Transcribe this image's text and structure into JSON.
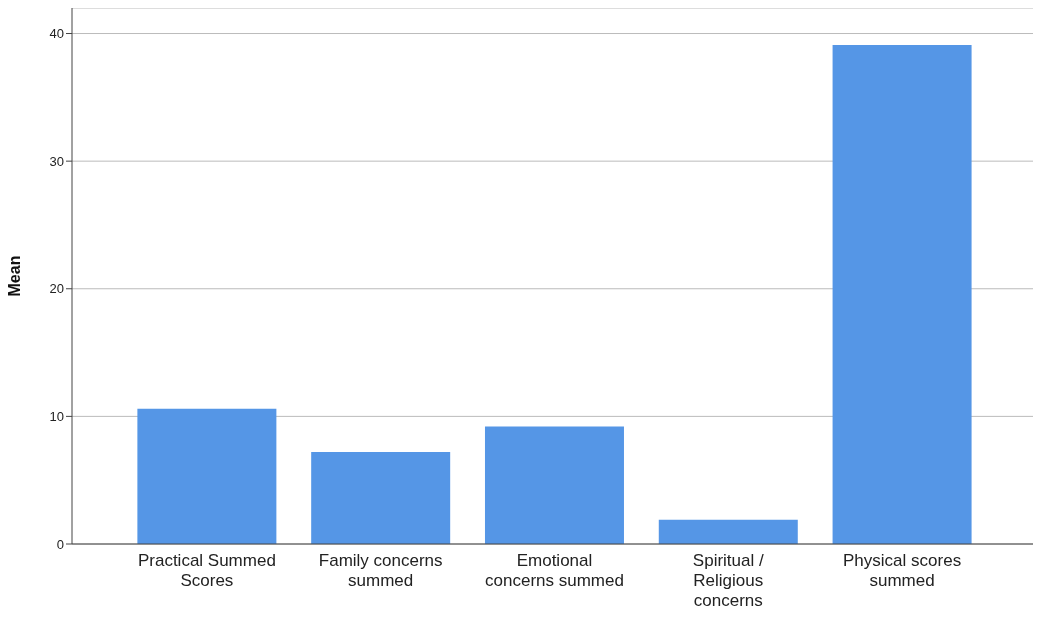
{
  "chart_data": {
    "type": "bar",
    "ylabel": "Mean",
    "categories": [
      "Practical Summed Scores",
      "Family concerns summed",
      "Emotional concerns summed",
      "Spiritual / Religious concerns",
      "Physical scores summed"
    ],
    "values": [
      10.6,
      7.2,
      9.2,
      1.9,
      39.1
    ],
    "color": "#5596e6",
    "ylim": [
      0,
      42
    ],
    "yticks": [
      0,
      10,
      20,
      30,
      40
    ],
    "grid": "y"
  }
}
